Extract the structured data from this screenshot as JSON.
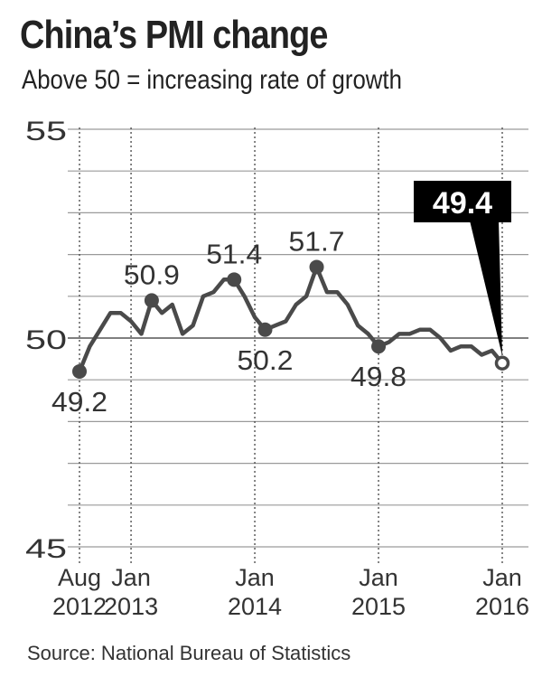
{
  "title": "China’s PMI change",
  "subtitle": "Above 50 = increasing rate of growth",
  "source": "Source: National Bureau of Statistics",
  "colors": {
    "line": "#4a4a4a",
    "grid": "#9a9a9a",
    "callout": "#000000"
  },
  "chart_data": {
    "type": "line",
    "title": "China’s PMI change",
    "subtitle": "Above 50 = increasing rate of growth",
    "ylim": [
      45,
      55
    ],
    "yticks": [
      "45",
      "50",
      "55"
    ],
    "grid": true,
    "xticks": [
      {
        "line1": "Aug",
        "line2": "2012",
        "index": 0
      },
      {
        "line1": "Jan",
        "line2": "2013",
        "index": 5
      },
      {
        "line1": "Jan",
        "line2": "2014",
        "index": 17
      },
      {
        "line1": "Jan",
        "line2": "2015",
        "index": 29
      },
      {
        "line1": "Jan",
        "line2": "2016",
        "index": 41
      }
    ],
    "x": [
      "2012-08",
      "2012-09",
      "2012-10",
      "2012-11",
      "2012-12",
      "2013-01",
      "2013-02",
      "2013-03",
      "2013-04",
      "2013-05",
      "2013-06",
      "2013-07",
      "2013-08",
      "2013-09",
      "2013-10",
      "2013-11",
      "2013-12",
      "2014-01",
      "2014-02",
      "2014-03",
      "2014-04",
      "2014-05",
      "2014-06",
      "2014-07",
      "2014-08",
      "2014-09",
      "2014-10",
      "2014-11",
      "2014-12",
      "2015-01",
      "2015-02",
      "2015-03",
      "2015-04",
      "2015-05",
      "2015-06",
      "2015-07",
      "2015-08",
      "2015-09",
      "2015-10",
      "2015-11",
      "2015-12",
      "2016-01"
    ],
    "values": [
      49.2,
      49.8,
      50.2,
      50.6,
      50.6,
      50.4,
      50.1,
      50.9,
      50.6,
      50.8,
      50.1,
      50.3,
      51.0,
      51.1,
      51.4,
      51.4,
      51.0,
      50.5,
      50.2,
      50.3,
      50.4,
      50.8,
      51.0,
      51.7,
      51.1,
      51.1,
      50.8,
      50.3,
      50.1,
      49.8,
      49.9,
      50.1,
      50.1,
      50.2,
      50.2,
      50.0,
      49.7,
      49.8,
      49.8,
      49.6,
      49.7,
      49.4
    ],
    "annotations": [
      {
        "index": 0,
        "label": "49.2",
        "pos": "below"
      },
      {
        "index": 7,
        "label": "50.9",
        "pos": "above"
      },
      {
        "index": 15,
        "label": "51.4",
        "pos": "above"
      },
      {
        "index": 18,
        "label": "50.2",
        "pos": "below"
      },
      {
        "index": 23,
        "label": "51.7",
        "pos": "above"
      },
      {
        "index": 29,
        "label": "49.8",
        "pos": "below"
      },
      {
        "index": 41,
        "label": "49.4",
        "pos": "callout"
      }
    ]
  }
}
